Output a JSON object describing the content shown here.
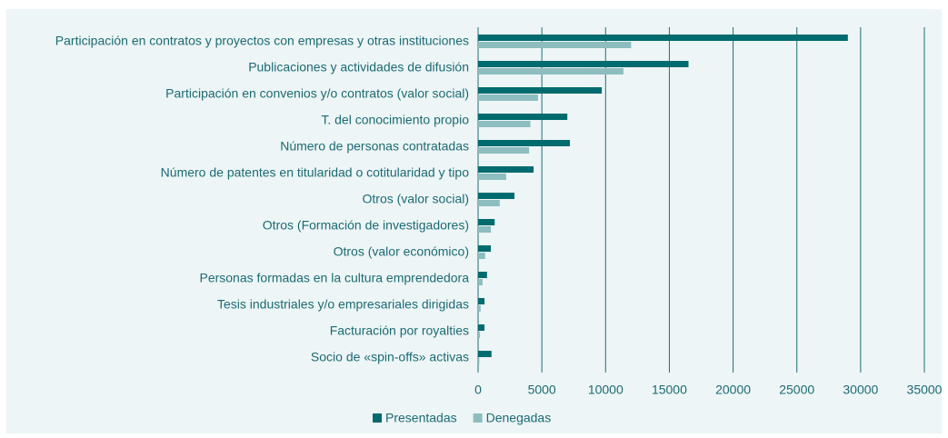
{
  "chart_data": {
    "type": "hbar",
    "categories": [
      "Participación en contratos y proyectos con empresas y otras instituciones",
      "Publicaciones y actividades de difusión",
      "Participación en convenios y/o contratos (valor social)",
      "T. del conocimiento propio",
      "Número de personas contratadas",
      "Número de patentes en titularidad o cotitularidad y tipo",
      "Otros (valor social)",
      "Otros (Formación de investigadores)",
      "Otros (valor económico)",
      "Personas formadas en la cultura emprendedora",
      "Tesis industriales y/o empresariales dirigidas",
      "Facturación por royalties",
      "Socio de «spin-offs» activas"
    ],
    "series": [
      {
        "name": "Presentadas",
        "color": "#006b6e",
        "values": [
          29000,
          16500,
          9700,
          7000,
          7200,
          4350,
          2850,
          1300,
          1000,
          700,
          500,
          500,
          1050
        ]
      },
      {
        "name": "Denegadas",
        "color": "#8dbdbf",
        "values": [
          12000,
          11400,
          4700,
          4100,
          4000,
          2200,
          1700,
          1000,
          550,
          350,
          200,
          150,
          100
        ]
      }
    ],
    "xlim": [
      0,
      35000
    ],
    "xticks": [
      0,
      5000,
      10000,
      15000,
      20000,
      25000,
      30000,
      35000
    ],
    "grid": true,
    "legend": "bottom"
  }
}
